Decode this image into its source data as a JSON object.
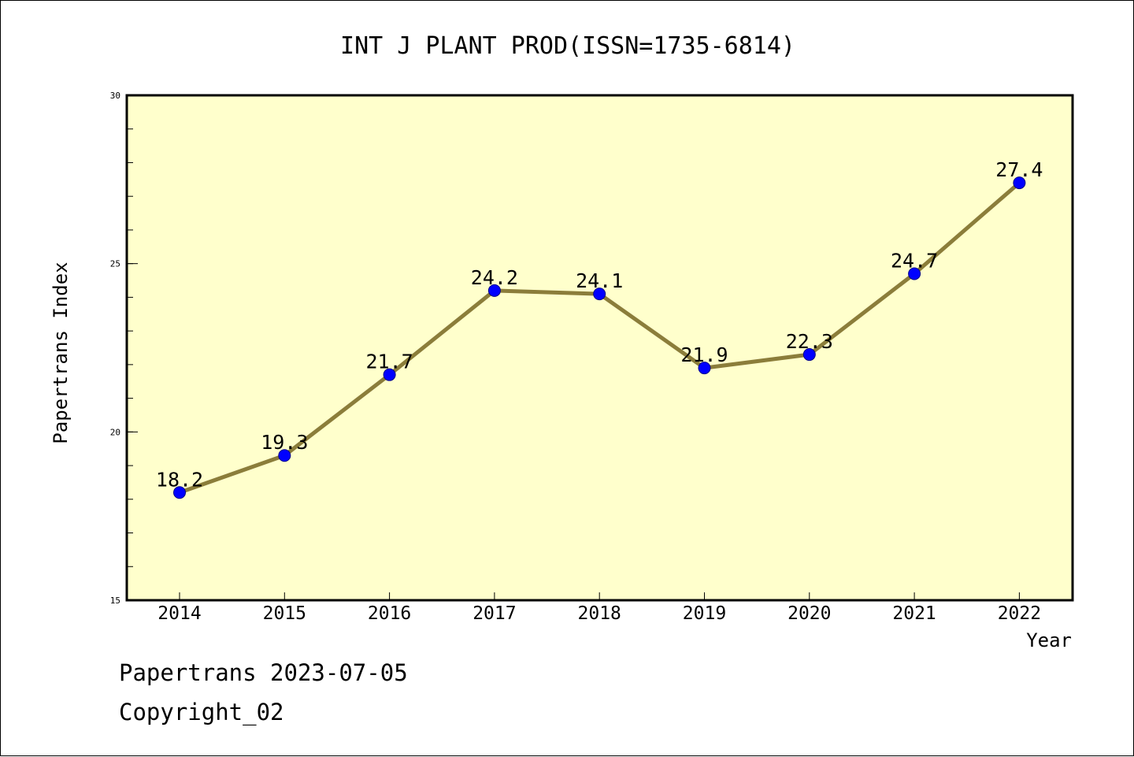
{
  "chart_data": {
    "type": "line",
    "title": "INT J PLANT PROD(ISSN=1735-6814)",
    "xlabel": "Year",
    "ylabel": "Papertrans Index",
    "x": [
      "2014",
      "2015",
      "2016",
      "2017",
      "2018",
      "2019",
      "2020",
      "2021",
      "2022"
    ],
    "series": [
      {
        "values": [
          18.2,
          19.3,
          21.7,
          24.2,
          24.1,
          21.9,
          22.3,
          24.7,
          27.4
        ],
        "labels": [
          "18.2",
          "19.3",
          "21.7",
          "24.2",
          "24.1",
          "21.9",
          "22.3",
          "24.7",
          "27.4"
        ]
      }
    ],
    "ylim": [
      15,
      30
    ],
    "y_ticks": [
      "15",
      "20",
      "25",
      "30"
    ],
    "grid": false,
    "legend": "none",
    "colors": {
      "plot_background": "#ffffcc",
      "line": "#8b7d3a",
      "marker": "#0000ff"
    }
  },
  "footer": {
    "source": "Papertrans 2023-07-05",
    "copyright": "Copyright_02"
  }
}
